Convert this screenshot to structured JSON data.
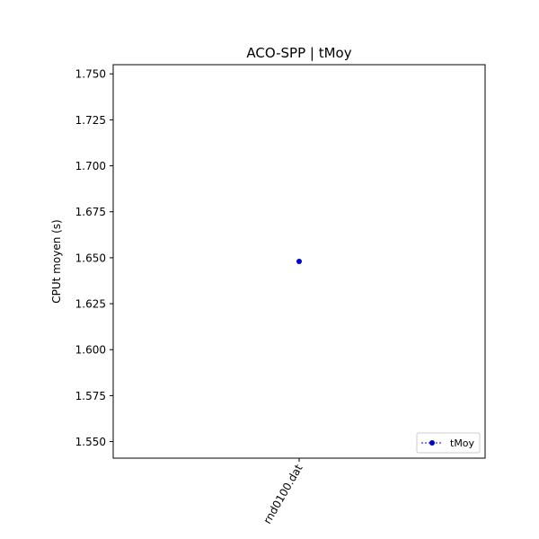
{
  "chart_data": {
    "type": "line",
    "title": "ACO-SPP | tMoy",
    "xlabel": "",
    "ylabel": "CPUt moyen (s)",
    "categories": [
      "rnd0100.dat"
    ],
    "series": [
      {
        "name": "tMoy",
        "values": [
          1.648
        ],
        "color": "#0000cc",
        "marker": "circle",
        "linestyle": "dashed"
      }
    ],
    "ylim": [
      1.541,
      1.755
    ],
    "yticks": [
      "1.550",
      "1.575",
      "1.600",
      "1.625",
      "1.650",
      "1.675",
      "1.700",
      "1.725",
      "1.750"
    ],
    "grid": false,
    "legend": {
      "position": "lower-right",
      "entries": [
        "tMoy"
      ]
    }
  }
}
